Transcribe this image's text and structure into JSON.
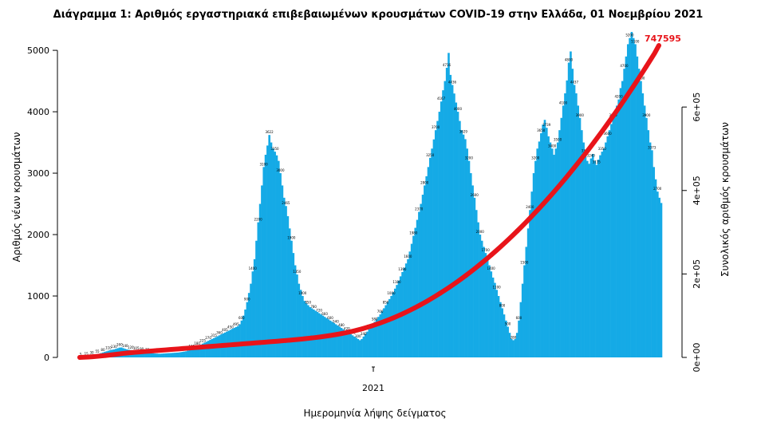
{
  "chart_data": {
    "type": "bar",
    "title": "Διάγραμμα 1: Αριθμός εργαστηριακά επιβεβαιωμένων κρουσμάτων COVID-19 στην Ελλάδα, 01 Νοεμβρίου 2021",
    "xlabel": "Ημερομηνία λήψης δείγματος",
    "ylabel": "Αριθμός νέων κρουσμάτων",
    "y2label": "Συνολικός αριθμός κρουσμάτων",
    "x_tick_labels": [
      "2021"
    ],
    "ylim": [
      0,
      5300
    ],
    "y_ticks": [
      0,
      1000,
      2000,
      3000,
      4000,
      5000
    ],
    "y2lim": [
      0,
      780000
    ],
    "y2_ticks": [
      "0e+00",
      "2e+05",
      "4e+05",
      "6e+05"
    ],
    "y2_tick_values": [
      0,
      200000,
      400000,
      600000
    ],
    "colors": {
      "bars": "#15aae6",
      "cumulative": "#e8141a"
    },
    "annotations": [
      {
        "text": "747595",
        "at": "last-point"
      }
    ],
    "series": [
      {
        "kind": "bar",
        "axis": "left",
        "values": [
          5,
          8,
          12,
          15,
          20,
          25,
          30,
          40,
          45,
          55,
          60,
          70,
          80,
          90,
          100,
          110,
          120,
          125,
          130,
          140,
          150,
          160,
          162,
          150,
          140,
          130,
          125,
          120,
          115,
          110,
          105,
          100,
          95,
          90,
          85,
          80,
          75,
          70,
          68,
          66,
          64,
          62,
          60,
          60,
          62,
          64,
          66,
          68,
          70,
          72,
          74,
          76,
          78,
          80,
          85,
          90,
          95,
          100,
          110,
          120,
          135,
          150,
          165,
          180,
          195,
          210,
          225,
          240,
          255,
          270,
          285,
          300,
          315,
          330,
          345,
          360,
          375,
          390,
          405,
          420,
          435,
          450,
          465,
          480,
          495,
          510,
          540,
          600,
          680,
          780,
          900,
          1050,
          1200,
          1400,
          1600,
          1900,
          2200,
          2500,
          2800,
          3100,
          3300,
          3450,
          3622,
          3500,
          3400,
          3350,
          3290,
          3200,
          3000,
          2800,
          2600,
          2465,
          2300,
          2100,
          1900,
          1700,
          1500,
          1350,
          1200,
          1100,
          1000,
          920,
          880,
          850,
          820,
          800,
          780,
          760,
          740,
          720,
          700,
          680,
          660,
          640,
          620,
          600,
          580,
          560,
          540,
          520,
          500,
          480,
          460,
          440,
          420,
          400,
          380,
          360,
          340,
          320,
          300,
          280,
          300,
          340,
          380,
          420,
          460,
          500,
          540,
          580,
          620,
          660,
          700,
          750,
          800,
          850,
          900,
          950,
          1000,
          1060,
          1120,
          1180,
          1250,
          1320,
          1390,
          1460,
          1530,
          1600,
          1724,
          1850,
          1980,
          2110,
          2240,
          2370,
          2500,
          2650,
          2800,
          2950,
          3100,
          3250,
          3400,
          3550,
          3700,
          3850,
          4000,
          4167,
          4350,
          4500,
          4716,
          4958,
          4600,
          4436,
          4297,
          4150,
          4000,
          3850,
          3700,
          3629,
          3554,
          3400,
          3200,
          3000,
          2800,
          2600,
          2400,
          2200,
          2000,
          1900,
          1800,
          1700,
          1600,
          1500,
          1400,
          1300,
          1214,
          1100,
          1000,
          900,
          800,
          700,
          600,
          500,
          400,
          300,
          280,
          300,
          400,
          600,
          900,
          1200,
          1500,
          1800,
          2100,
          2400,
          2700,
          3000,
          3200,
          3400,
          3515,
          3650,
          3792,
          3868,
          3739,
          3600,
          3500,
          3400,
          3300,
          3400,
          3500,
          3700,
          3900,
          4100,
          4300,
          4510,
          4800,
          4982,
          4700,
          4437,
          4300,
          4100,
          3900,
          3700,
          3500,
          3320,
          3200,
          3153,
          3240,
          3313,
          3200,
          3135,
          3220,
          3292,
          3350,
          3400,
          3500,
          3600,
          3700,
          3800,
          3900,
          4000,
          4100,
          4200,
          4386,
          4500,
          4700,
          4900,
          5100,
          5200,
          5300,
          5200,
          5100,
          4900,
          4700,
          4500,
          4300,
          4100,
          3900,
          3700,
          3500,
          3373,
          3100,
          2900,
          2700,
          2600,
          2515
        ]
      },
      {
        "kind": "line",
        "axis": "right",
        "name": "",
        "values": [
          100,
          400,
          900,
          1600,
          2500,
          3500,
          4600,
          5800,
          7000,
          8200,
          9400,
          10500,
          11500,
          12400,
          13200,
          14000,
          14800,
          15600,
          16400,
          17200,
          18000,
          18800,
          19600,
          20400,
          21200,
          22000,
          22800,
          23600,
          24400,
          25200,
          26000,
          26800,
          27600,
          28400,
          29200,
          30000,
          30800,
          31600,
          32400,
          33200,
          34000,
          34800,
          35600,
          36400,
          37200,
          38000,
          38800,
          39600,
          40500,
          41400,
          42300,
          43300,
          44300,
          45400,
          46500,
          47700,
          49000,
          50400,
          51900,
          53500,
          55200,
          57100,
          59100,
          61300,
          63700,
          66300,
          69100,
          72100,
          75300,
          78700,
          82300,
          86100,
          90100,
          94300,
          98700,
          103300,
          108100,
          113100,
          118300,
          123700,
          129300,
          135100,
          141100,
          147300,
          153700,
          160300,
          167100,
          174100,
          181300,
          188700,
          196300,
          204100,
          212100,
          220300,
          228700,
          237300,
          246100,
          255100,
          264300,
          273700,
          283300,
          293100,
          303100,
          313300,
          323700,
          334300,
          345100,
          356100,
          367300,
          378700,
          390300,
          402100,
          414100,
          426300,
          438700,
          451300,
          464100,
          477100,
          490300,
          503700,
          517300,
          531100,
          545100,
          559300,
          573700,
          588300,
          603100,
          618100,
          633300,
          648700,
          664300,
          680100,
          696100,
          712300,
          728700,
          747595
        ]
      }
    ]
  }
}
